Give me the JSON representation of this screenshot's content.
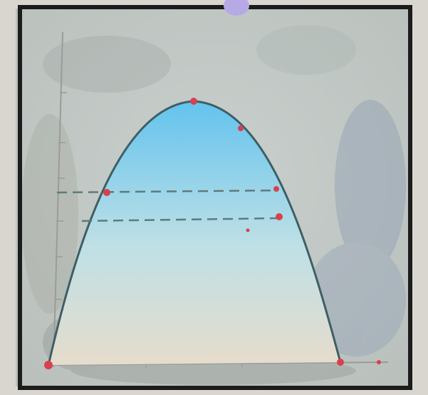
{
  "photo": {
    "colors": {
      "paper_outer": "#d8d6cf",
      "paper_inner": "#c9cfcc",
      "frame": "#1c1c1c",
      "curve_stroke": "#3e5f66",
      "fill_top": "#63c3ee",
      "fill_mid": "#bfe0e6",
      "fill_bottom": "#e6dccb",
      "marker": "#d8404e",
      "dashed_line": "#5f7a7b",
      "axis": "#9a9c9a",
      "pin": "#b7a8e6"
    }
  }
}
